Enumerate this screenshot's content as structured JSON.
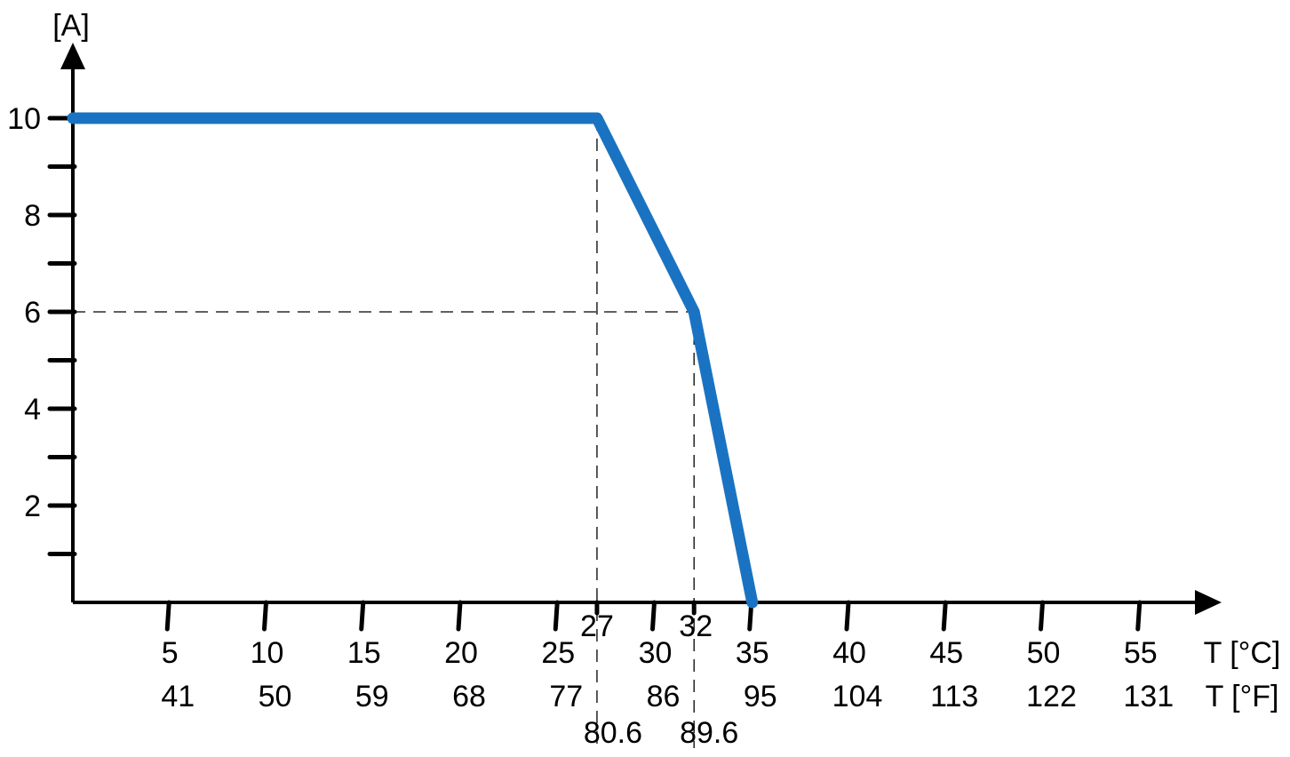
{
  "chart_data": {
    "type": "line",
    "title": "",
    "ylabel": "[A]",
    "xlabel_c": "T [°C]",
    "xlabel_f": "T [°F]",
    "xlim": [
      0,
      60
    ],
    "ylim": [
      0,
      11
    ],
    "grid": false,
    "series": [
      {
        "x": [
          0,
          27,
          32,
          35
        ],
        "y": [
          10,
          10,
          6,
          0
        ],
        "color": "#1a73c2"
      }
    ],
    "x_ticks_c": [
      "5",
      "10",
      "15",
      "20",
      "25",
      "30",
      "35",
      "40",
      "45",
      "50",
      "55"
    ],
    "x_tick_values": [
      5,
      10,
      15,
      20,
      25,
      30,
      35,
      40,
      45,
      50,
      55
    ],
    "x_ticks_f": [
      "41",
      "50",
      "59",
      "68",
      "77",
      "86",
      "95",
      "104",
      "113",
      "122",
      "131"
    ],
    "y_major_ticks": [
      "2",
      "4",
      "6",
      "8",
      "10"
    ],
    "y_major_values": [
      2,
      4,
      6,
      8,
      10
    ],
    "y_minor_values": [
      1,
      3,
      5,
      7,
      9
    ],
    "reference_lines": [
      {
        "x": 27,
        "y": 10,
        "label_c": "27",
        "label_f": "80.6"
      },
      {
        "x": 32,
        "y": 6,
        "label_c": "32",
        "label_f": "89.6"
      }
    ],
    "extra_x_ticks": [
      27,
      32
    ]
  }
}
